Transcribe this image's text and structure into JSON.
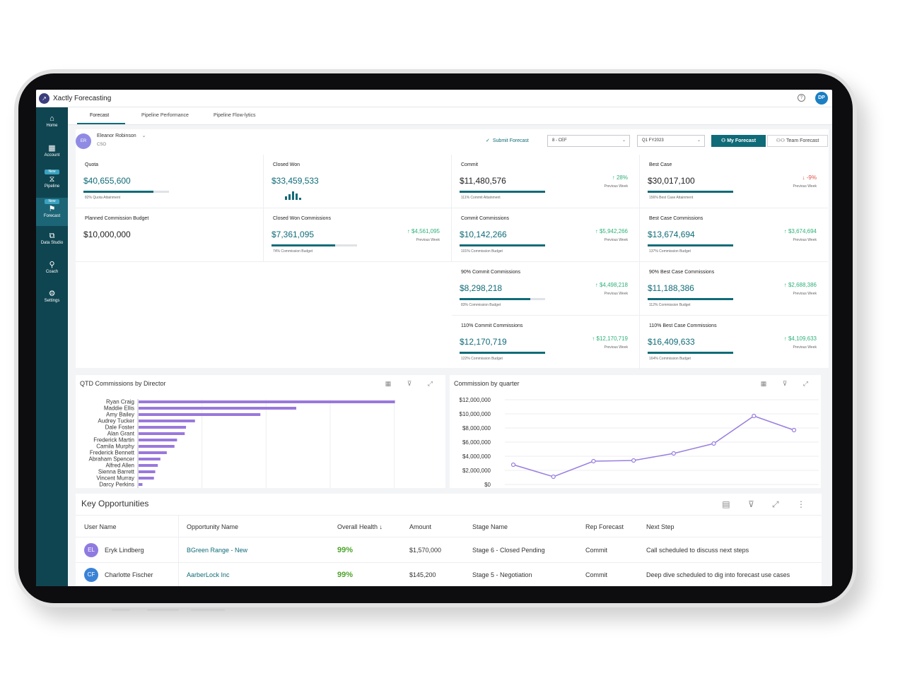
{
  "app": {
    "logo_glyph": "↗",
    "title": "Xactly Forecasting",
    "help_icon": "help-icon",
    "user_initials": "DP"
  },
  "sidebar": {
    "items": [
      {
        "label": "Home",
        "icon": "⌂",
        "new": ""
      },
      {
        "label": "Account",
        "icon": "▦",
        "new": ""
      },
      {
        "label": "Pipeline",
        "icon": "⧖",
        "new": "New"
      },
      {
        "label": "Forecast",
        "icon": "⚑",
        "new": "New"
      },
      {
        "label": "Data Studio",
        "icon": "⧉",
        "new": ""
      },
      {
        "label": "Coach",
        "icon": "⚲",
        "new": ""
      },
      {
        "label": "Settings",
        "icon": "⚙",
        "new": ""
      }
    ]
  },
  "tabs": [
    "Forecast",
    "Pipeline Performance",
    "Pipeline Flow-lytics"
  ],
  "user": {
    "initials": "ER",
    "name": "Eleanor Robinson",
    "role": "CSO",
    "chevron": "⌄"
  },
  "toolbar": {
    "submit_icon": "✓",
    "submit": "Submit Forecast",
    "forecast_select": "8 - CEF",
    "period_select": "Q1 FY2023",
    "my_forecast": "My Forecast",
    "team_forecast": "Team Forecast",
    "chevron": "⌄"
  },
  "metrics": {
    "quota": {
      "label": "Quota",
      "value": "$40,655,600",
      "progress": 0.82,
      "sub": "82%  Quota Attainment"
    },
    "closed_won": {
      "label": "Closed Won",
      "value": "$33,459,533"
    },
    "commit": {
      "label": "Commit",
      "value": "$11,480,576",
      "progress": 1.0,
      "sub": "111%  Commit Attainment",
      "change": "28%",
      "arrow": "↑",
      "change_label": "Previous Week"
    },
    "best_case": {
      "label": "Best Case",
      "value": "$30,017,100",
      "progress": 1.0,
      "sub": "156%  Best Case Attainment",
      "change": "-9%",
      "arrow": "↓",
      "change_label": "Previous Week"
    },
    "planned_budget": {
      "label": "Planned Commission Budget",
      "value": "$10,000,000"
    },
    "closed_won_comm": {
      "label": "Closed Won Commissions",
      "value": "$7,361,095",
      "progress": 0.74,
      "sub": "74%  Commission Budget",
      "change": "$4,561,095",
      "arrow": "↑",
      "change_label": "Previous Week"
    },
    "commit_comm": {
      "label": "Commit Commissions",
      "value": "$10,142,266",
      "progress": 1.0,
      "sub": "101%  Commission Budget",
      "change": "$5,942,266",
      "arrow": "↑",
      "change_label": "Previous Week"
    },
    "best_case_comm": {
      "label": "Best Case Commissions",
      "value": "$13,674,694",
      "progress": 1.0,
      "sub": "137%  Commission Budget",
      "change": "$3,674,694",
      "arrow": "↑",
      "change_label": "Previous Week"
    },
    "commit90": {
      "label": "90% Commit Commissions",
      "value": "$8,298,218",
      "progress": 0.83,
      "sub": "83%  Commission Budget",
      "change": "$4,498,218",
      "arrow": "↑",
      "change_label": "Previous Week"
    },
    "best90": {
      "label": "90% Best Case Commissions",
      "value": "$11,188,386",
      "progress": 1.0,
      "sub": "112%  Commission Budget",
      "change": "$2,688,386",
      "arrow": "↑",
      "change_label": "Previous Week"
    },
    "commit110": {
      "label": "110% Commit Commissions",
      "value": "$12,170,719",
      "progress": 1.0,
      "sub": "122%  Commission Budget",
      "change": "$12,170,719",
      "arrow": "↑",
      "change_label": "Previous Week"
    },
    "best110": {
      "label": "110% Best Case Commissions",
      "value": "$16,409,633",
      "progress": 1.0,
      "sub": "164%  Commission Budget",
      "change": "$4,109,633",
      "arrow": "↑",
      "change_label": "Previous Week"
    }
  },
  "panels": {
    "qtd_title": "QTD Commissions by Director",
    "quarter_title": "Commission by quarter",
    "icons": "▦ ⊽ ⤢"
  },
  "chart_data": [
    {
      "type": "bar",
      "orientation": "horizontal",
      "title": "QTD Commissions by Director",
      "categories": [
        "Ryan Craig",
        "Maddie Ellis",
        "Amy Bailey",
        "Audrey Tucker",
        "Dale Foster",
        "Alan Grant",
        "Frederick Martin",
        "Camila Murphy",
        "Frederick Bennett",
        "Abraham Spencer",
        "Alfred Allen",
        "Sienna Barrett",
        "Vincent Murray",
        "Darcy Perkins"
      ],
      "values": [
        100,
        61.5,
        47.5,
        22,
        18.5,
        18,
        15,
        14,
        11,
        8.5,
        7.5,
        6.5,
        6,
        1.5
      ],
      "xlim": [
        0,
        115
      ],
      "grid": true,
      "color": "#9a78dc"
    },
    {
      "type": "line",
      "title": "Commission by quarter",
      "x": [
        1,
        2,
        3,
        4,
        5,
        6,
        7,
        8
      ],
      "values": [
        2800000,
        1100000,
        3300000,
        3400000,
        4400000,
        5800000,
        9700000,
        7700000
      ],
      "yticks": [
        "$12,000,000",
        "$10,000,000",
        "$8,000,000",
        "$6,000,000",
        "$4,000,000",
        "$2,000,000",
        "$0"
      ],
      "ylim": [
        0,
        12000000
      ],
      "grid": true,
      "color": "#9a7ee0"
    }
  ],
  "opportunities": {
    "title": "Key Opportunities",
    "columns": [
      "User Name",
      "Opportunity Name",
      "Overall Health ↓",
      "Amount",
      "Stage Name",
      "Rep Forecast",
      "Next Step"
    ],
    "rows": [
      {
        "initials": "EL",
        "avatar_color": "#8f7be0",
        "user": "Eryk Lindberg",
        "opportunity": "BGreen Range - New",
        "health": "99%",
        "amount": "$1,570,000",
        "stage": "Stage 6 - Closed Pending",
        "forecast": "Commit",
        "next": "Call scheduled to discuss next steps"
      },
      {
        "initials": "CF",
        "avatar_color": "#3b82d6",
        "user": "Charlotte Fischer",
        "opportunity": "AarberLock Inc",
        "health": "99%",
        "amount": "$145,200",
        "stage": "Stage 5 - Negotiation",
        "forecast": "Commit",
        "next": "Deep dive scheduled to dig into forecast use cases"
      }
    ],
    "icons": "▤ ⊽ ⤢ ⋮"
  }
}
